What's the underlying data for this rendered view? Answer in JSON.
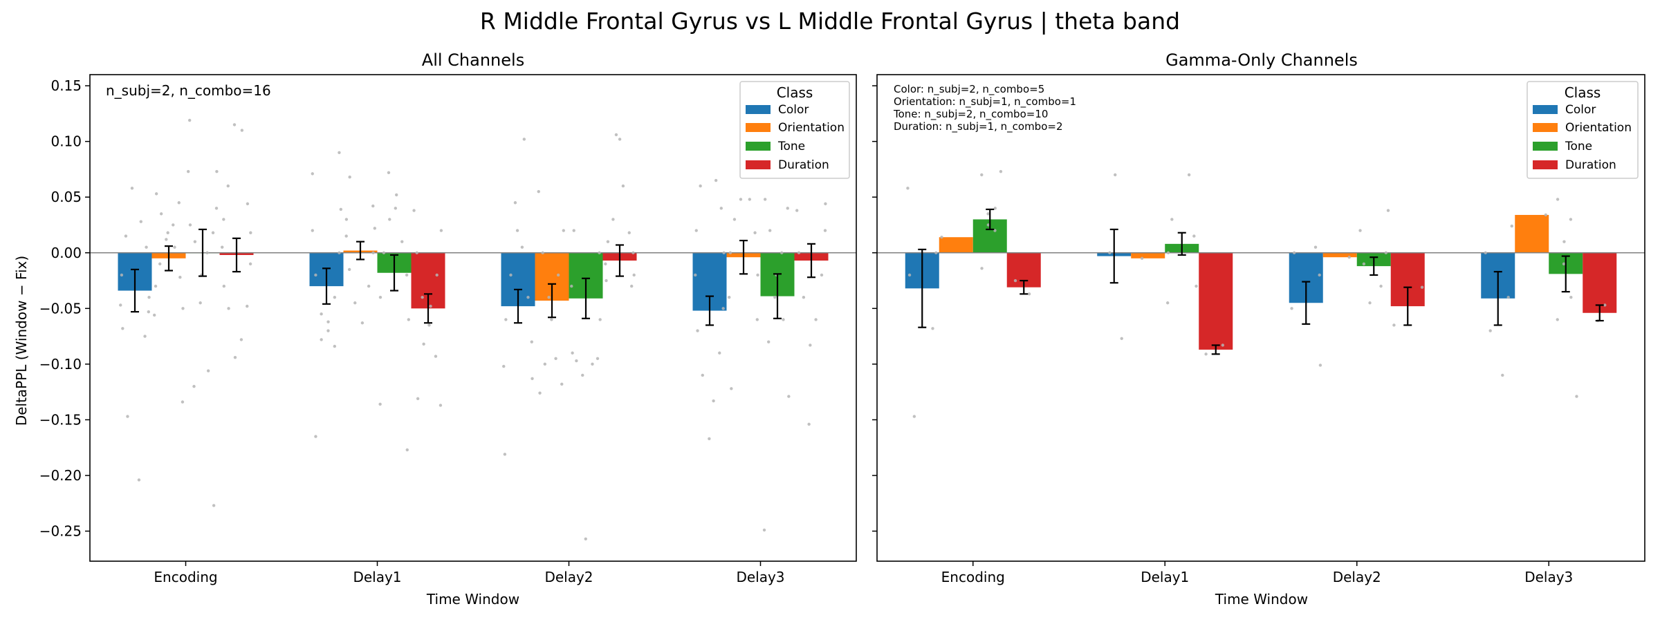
{
  "figure": {
    "suptitle": "R Middle Frontal Gyrus vs L Middle Frontal Gyrus  |  theta band",
    "ylabel": "DeltaPPL (Window − Fix)",
    "colors": {
      "Color": "#1f77b4",
      "Orientation": "#ff7f0e",
      "Tone": "#2ca02c",
      "Duration": "#d62728"
    }
  },
  "chart_data": [
    {
      "type": "bar",
      "title": "All Channels",
      "xlabel": "Time Window",
      "ylabel": "DeltaPPL (Window − Fix)",
      "categories": [
        "Encoding",
        "Delay1",
        "Delay2",
        "Delay3"
      ],
      "ylim": [
        -0.277,
        0.16
      ],
      "yticks": [
        -0.25,
        -0.2,
        -0.15,
        -0.1,
        -0.05,
        0.0,
        0.05,
        0.1,
        0.15
      ],
      "ytick_labels": [
        "−0.25",
        "−0.20",
        "−0.15",
        "−0.10",
        "−0.05",
        "0.00",
        "0.05",
        "0.10",
        "0.15"
      ],
      "annotation": [
        "n_subj=2, n_combo=16"
      ],
      "legend": {
        "title": "Class",
        "placement": "top-right",
        "entries": [
          "Color",
          "Orientation",
          "Tone",
          "Duration"
        ]
      },
      "series": [
        {
          "name": "Color",
          "values": [
            -0.034,
            -0.03,
            -0.048,
            -0.052
          ],
          "errors": [
            0.019,
            0.016,
            0.015,
            0.013
          ]
        },
        {
          "name": "Orientation",
          "values": [
            -0.005,
            0.002,
            -0.043,
            -0.004
          ],
          "errors": [
            0.011,
            0.008,
            0.015,
            0.015
          ]
        },
        {
          "name": "Tone",
          "values": [
            0.0,
            -0.018,
            -0.041,
            -0.039
          ],
          "errors": [
            0.021,
            0.016,
            0.018,
            0.02
          ]
        },
        {
          "name": "Duration",
          "values": [
            -0.002,
            -0.05,
            -0.007,
            -0.007
          ],
          "errors": [
            0.015,
            0.013,
            0.014,
            0.015
          ]
        }
      ],
      "points": [
        [
          [
            -0.204,
            -0.147,
            -0.075,
            -0.068,
            -0.053,
            -0.047,
            -0.04,
            -0.02,
            0.005,
            0.015,
            0.028,
            0.058
          ],
          [
            -0.134,
            -0.056,
            -0.05,
            -0.03,
            -0.022,
            -0.01,
            0.005,
            0.012,
            0.018,
            0.025,
            0.035,
            0.045,
            0.053
          ],
          [
            -0.227,
            -0.12,
            -0.106,
            -0.045,
            -0.02,
            0.0,
            0.01,
            0.018,
            0.025,
            0.04,
            0.073,
            0.073,
            0.119
          ],
          [
            -0.094,
            -0.078,
            -0.05,
            -0.048,
            -0.03,
            -0.01,
            0.005,
            0.018,
            0.03,
            0.044,
            0.06,
            0.11,
            0.115
          ]
        ],
        [
          [
            -0.165,
            -0.084,
            -0.078,
            -0.07,
            -0.062,
            -0.055,
            -0.04,
            -0.02,
            0.0,
            0.02,
            0.039,
            0.071,
            0.09
          ],
          [
            -0.063,
            -0.045,
            -0.03,
            -0.015,
            0.0,
            0.015,
            0.022,
            0.03,
            0.042,
            0.068
          ],
          [
            -0.177,
            -0.136,
            -0.06,
            -0.04,
            -0.02,
            0.0,
            0.01,
            0.03,
            0.04,
            0.052,
            0.072
          ],
          [
            -0.137,
            -0.131,
            -0.093,
            -0.082,
            -0.065,
            -0.048,
            -0.04,
            -0.02,
            0.0,
            0.02,
            0.038
          ]
        ],
        [
          [
            -0.181,
            -0.113,
            -0.102,
            -0.08,
            -0.06,
            -0.04,
            -0.02,
            0.005,
            0.02,
            0.045,
            0.102
          ],
          [
            -0.126,
            -0.118,
            -0.1,
            -0.095,
            -0.06,
            -0.04,
            -0.02,
            0.0,
            0.02,
            0.055
          ],
          [
            -0.257,
            -0.11,
            -0.1,
            -0.097,
            -0.095,
            -0.09,
            -0.06,
            -0.03,
            0.0,
            0.02
          ],
          [
            -0.03,
            -0.025,
            -0.02,
            -0.01,
            0.0,
            0.01,
            0.018,
            0.03,
            0.06,
            0.102,
            0.106
          ]
        ],
        [
          [
            -0.167,
            -0.133,
            -0.11,
            -0.09,
            -0.07,
            -0.05,
            -0.02,
            0.0,
            0.02,
            0.04,
            0.06,
            0.065
          ],
          [
            -0.122,
            -0.06,
            -0.04,
            -0.02,
            0.0,
            0.018,
            0.03,
            0.048,
            0.048
          ],
          [
            -0.249,
            -0.129,
            -0.08,
            -0.06,
            -0.04,
            -0.02,
            0.0,
            0.02,
            0.04,
            0.048
          ],
          [
            -0.154,
            -0.083,
            -0.06,
            -0.04,
            -0.02,
            0.0,
            0.02,
            0.038,
            0.044
          ]
        ]
      ]
    },
    {
      "type": "bar",
      "title": "Gamma-Only Channels",
      "xlabel": "Time Window",
      "categories": [
        "Encoding",
        "Delay1",
        "Delay2",
        "Delay3"
      ],
      "ylim": [
        -0.277,
        0.16
      ],
      "yticks": [
        -0.25,
        -0.2,
        -0.15,
        -0.1,
        -0.05,
        0.0,
        0.05,
        0.1,
        0.15
      ],
      "annotation": [
        "Color: n_subj=2, n_combo=5",
        "Orientation: n_subj=1, n_combo=1",
        "Tone: n_subj=2, n_combo=10",
        "Duration: n_subj=1, n_combo=2"
      ],
      "legend": {
        "title": "Class",
        "placement": "top-right",
        "entries": [
          "Color",
          "Orientation",
          "Tone",
          "Duration"
        ]
      },
      "series": [
        {
          "name": "Color",
          "values": [
            -0.032,
            -0.003,
            -0.045,
            -0.041
          ],
          "errors": [
            0.035,
            0.024,
            0.019,
            0.024
          ]
        },
        {
          "name": "Orientation",
          "values": [
            0.014,
            -0.005,
            -0.004,
            0.034
          ],
          "errors": [
            0.0,
            0.0,
            0.0,
            0.0
          ]
        },
        {
          "name": "Tone",
          "values": [
            0.03,
            0.008,
            -0.012,
            -0.019
          ],
          "errors": [
            0.009,
            0.01,
            0.008,
            0.016
          ]
        },
        {
          "name": "Duration",
          "values": [
            -0.031,
            -0.087,
            -0.048,
            -0.054
          ],
          "errors": [
            0.006,
            0.004,
            0.017,
            0.007
          ]
        }
      ],
      "points": [
        [
          [
            -0.147,
            -0.068,
            -0.02,
            0.0,
            0.058
          ],
          [
            0.014
          ],
          [
            -0.014,
            0.02,
            0.025,
            0.035,
            0.04,
            0.07,
            0.073
          ],
          [
            -0.037,
            -0.025
          ]
        ],
        [
          [
            -0.077,
            0.0,
            0.07
          ],
          [
            -0.005
          ],
          [
            -0.045,
            -0.03,
            0.0,
            0.015,
            0.03,
            0.07
          ],
          [
            -0.091,
            -0.083
          ]
        ],
        [
          [
            -0.101,
            -0.05,
            -0.02,
            0.0,
            0.005
          ],
          [
            -0.004
          ],
          [
            -0.045,
            -0.03,
            -0.01,
            0.0,
            0.02,
            0.038
          ],
          [
            -0.065,
            -0.031
          ]
        ],
        [
          [
            -0.11,
            -0.07,
            -0.04,
            0.0,
            0.024
          ],
          [
            0.034
          ],
          [
            -0.129,
            -0.06,
            -0.04,
            -0.01,
            0.01,
            0.03,
            0.048
          ],
          [
            -0.061,
            -0.047
          ]
        ]
      ]
    }
  ]
}
